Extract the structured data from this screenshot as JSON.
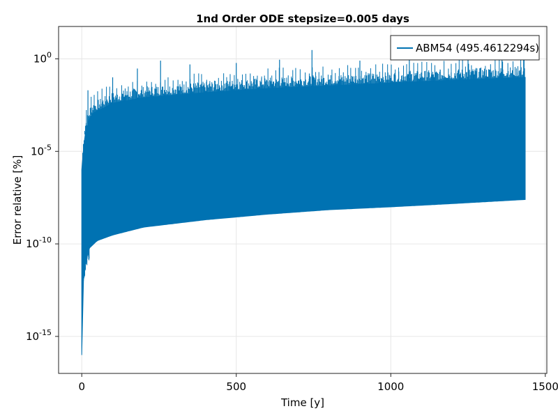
{
  "chart_data": {
    "type": "line",
    "title": "1nd Order ODE stepsize=0.005 days",
    "xlabel": "Time [y]",
    "ylabel": "Error relative [%]",
    "xlim": [
      -75,
      1505
    ],
    "ylim_log10": [
      -17.0,
      1.75
    ],
    "yscale": "log10",
    "grid": true,
    "legend_position": "top-right",
    "x_ticks": [
      {
        "value": 0,
        "label": "0"
      },
      {
        "value": 500,
        "label": "500"
      },
      {
        "value": 1000,
        "label": "1000"
      },
      {
        "value": 1500,
        "label": "1500"
      }
    ],
    "y_ticks": [
      {
        "exponent": 0,
        "base": "10",
        "sup": "0"
      },
      {
        "exponent": -5,
        "base": "10",
        "sup": "-5"
      },
      {
        "exponent": -10,
        "base": "10",
        "sup": "-10"
      },
      {
        "exponent": -15,
        "base": "10",
        "sup": "-15"
      }
    ],
    "series": [
      {
        "name": "ABM54 (495.4612294s)",
        "color": "#0072b2",
        "x_range": [
          0,
          1435
        ],
        "band_lower_envelope": [
          {
            "x": 0,
            "y": 1e-16
          },
          {
            "x": 2,
            "y": 1e-13
          },
          {
            "x": 5,
            "y": 3e-12
          },
          {
            "x": 10,
            "y": 1e-11
          },
          {
            "x": 20,
            "y": 5e-11
          },
          {
            "x": 50,
            "y": 1.5e-10
          },
          {
            "x": 100,
            "y": 3e-10
          },
          {
            "x": 200,
            "y": 8e-10
          },
          {
            "x": 400,
            "y": 2e-09
          },
          {
            "x": 600,
            "y": 4e-09
          },
          {
            "x": 800,
            "y": 7e-09
          },
          {
            "x": 1000,
            "y": 1e-08
          },
          {
            "x": 1200,
            "y": 1.5e-08
          },
          {
            "x": 1435,
            "y": 2.5e-08
          }
        ],
        "band_upper_envelope": [
          {
            "x": 0,
            "y": 1e-06
          },
          {
            "x": 10,
            "y": 0.0001
          },
          {
            "x": 30,
            "y": 0.001
          },
          {
            "x": 100,
            "y": 0.004
          },
          {
            "x": 200,
            "y": 0.008
          },
          {
            "x": 400,
            "y": 0.015
          },
          {
            "x": 600,
            "y": 0.025
          },
          {
            "x": 800,
            "y": 0.035
          },
          {
            "x": 1000,
            "y": 0.05
          },
          {
            "x": 1200,
            "y": 0.07
          },
          {
            "x": 1435,
            "y": 0.1
          }
        ],
        "spikes_approx_max": [
          {
            "x": 20,
            "y": 0.02
          },
          {
            "x": 100,
            "y": 0.1
          },
          {
            "x": 180,
            "y": 0.3
          },
          {
            "x": 255,
            "y": 0.8
          },
          {
            "x": 350,
            "y": 0.5
          },
          {
            "x": 500,
            "y": 0.6
          },
          {
            "x": 640,
            "y": 0.9
          },
          {
            "x": 745,
            "y": 3.0
          },
          {
            "x": 900,
            "y": 0.8
          },
          {
            "x": 1060,
            "y": 1.2
          },
          {
            "x": 1250,
            "y": 1.1
          },
          {
            "x": 1360,
            "y": 1.8
          },
          {
            "x": 1430,
            "y": 1.5
          }
        ]
      }
    ]
  }
}
